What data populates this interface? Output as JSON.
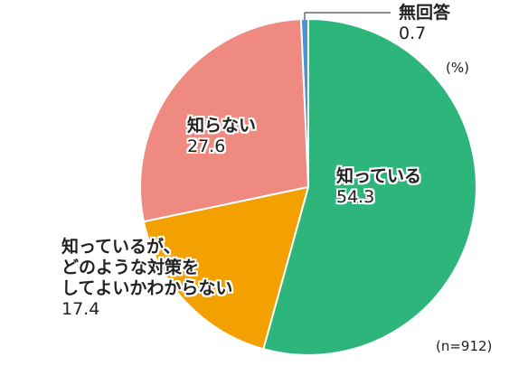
{
  "chart_data": {
    "type": "pie",
    "categories": [
      "知っている",
      "知っているが、\nどのような対策を\nしてよいかわからない",
      "知らない",
      "無回答"
    ],
    "values": [
      54.3,
      17.4,
      27.6,
      0.7
    ],
    "colors": [
      "#2eb57b",
      "#f3a100",
      "#ef8a80",
      "#4a94d4"
    ],
    "unit_label": "(%)",
    "note": "(n=912)"
  }
}
